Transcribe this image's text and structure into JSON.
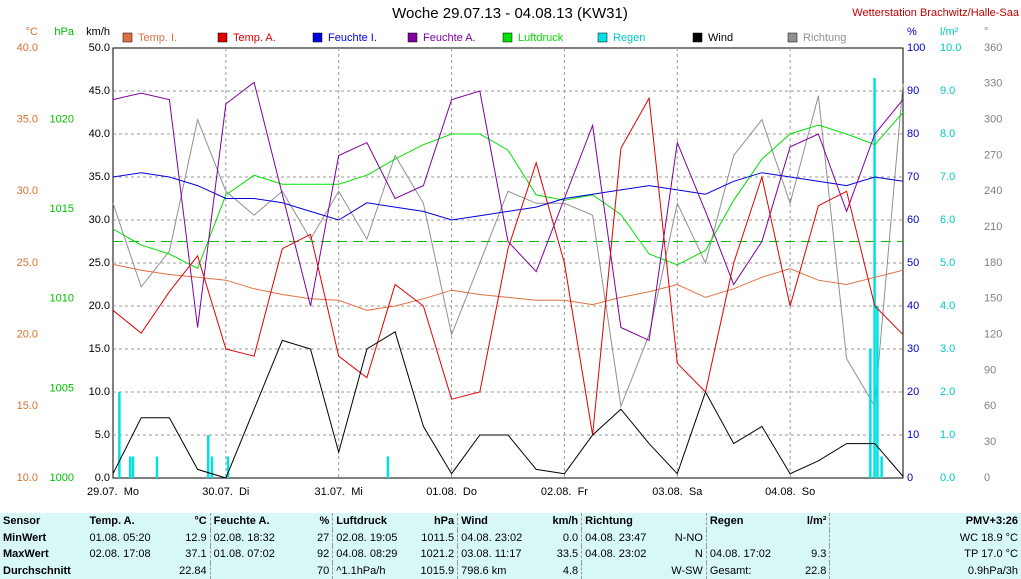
{
  "chart_data": {
    "type": "line",
    "title": "Woche 29.07.13 - 04.08.13 (KW31)",
    "station": "Wetterstation Brachwitz/Halle-Saa",
    "xlim": [
      0,
      168
    ],
    "xticks": [
      {
        "value": 0,
        "label": "29.07.  Mo"
      },
      {
        "value": 24,
        "label": "30.07.  Di"
      },
      {
        "value": 48,
        "label": "31.07.  Mi"
      },
      {
        "value": 72,
        "label": "01.08.  Do"
      },
      {
        "value": 96,
        "label": "02.08.  Fr"
      },
      {
        "value": 120,
        "label": "03.08.  Sa"
      },
      {
        "value": 144,
        "label": "04.08.  So"
      }
    ],
    "grid": true,
    "x": [
      0,
      6,
      12,
      18,
      24,
      30,
      36,
      42,
      48,
      54,
      60,
      66,
      72,
      78,
      84,
      90,
      96,
      102,
      108,
      114,
      120,
      126,
      132,
      138,
      144,
      150,
      156,
      162,
      168
    ],
    "axes": {
      "temp": {
        "unit": "°C",
        "color": "#e07030",
        "lim": [
          10,
          40
        ],
        "ticks": [
          {
            "value": 10,
            "label": "10.0"
          },
          {
            "value": 15,
            "label": "15.0"
          },
          {
            "value": 20,
            "label": "20.0"
          },
          {
            "value": 25,
            "label": "25.0"
          },
          {
            "value": 30,
            "label": "30.0"
          },
          {
            "value": 35,
            "label": "35.0"
          },
          {
            "value": 40,
            "label": "40.0"
          }
        ]
      },
      "pres": {
        "unit": "hPa",
        "color": "#00c000",
        "lim": [
          1000,
          1024
        ],
        "ticks": [
          1000,
          1005,
          1010,
          1015,
          1020
        ]
      },
      "wind": {
        "unit": "km/h",
        "color": "#000000",
        "lim": [
          0,
          50
        ],
        "ticks": [
          {
            "value": 0,
            "label": "0.0"
          },
          {
            "value": 5,
            "label": "5.0"
          },
          {
            "value": 10,
            "label": "10.0"
          },
          {
            "value": 15,
            "label": "15.0"
          },
          {
            "value": 20,
            "label": "20.0"
          },
          {
            "value": 25,
            "label": "25.0"
          },
          {
            "value": 30,
            "label": "30.0"
          },
          {
            "value": 35,
            "label": "35.0"
          },
          {
            "value": 40,
            "label": "40.0"
          },
          {
            "value": 45,
            "label": "45.0"
          },
          {
            "value": 50,
            "label": "50.0"
          }
        ]
      },
      "hum": {
        "unit": "%",
        "color": "#0000c0",
        "lim": [
          0,
          100
        ],
        "ticks": [
          0,
          10,
          20,
          30,
          40,
          50,
          60,
          70,
          80,
          90,
          100
        ]
      },
      "rain": {
        "unit": "l/m²",
        "color": "#00c8c8",
        "lim": [
          0,
          10
        ],
        "ticks": [
          {
            "value": 0,
            "label": "0.0"
          },
          {
            "value": 1,
            "label": "1.0"
          },
          {
            "value": 2,
            "label": "2.0"
          },
          {
            "value": 3,
            "label": "3.0"
          },
          {
            "value": 4,
            "label": "4.0"
          },
          {
            "value": 5,
            "label": "5.0"
          },
          {
            "value": 6,
            "label": "6.0"
          },
          {
            "value": 7,
            "label": "7.0"
          },
          {
            "value": 8,
            "label": "8.0"
          },
          {
            "value": 9,
            "label": "9.0"
          },
          {
            "value": 10,
            "label": "10.0"
          }
        ]
      },
      "dir": {
        "unit": "°",
        "color": "#808080",
        "lim": [
          0,
          360
        ],
        "ticks": [
          0,
          30,
          60,
          90,
          120,
          150,
          180,
          210,
          240,
          270,
          300,
          330,
          360
        ]
      }
    },
    "reference_line": {
      "axis": "pres",
      "value": 1013.2,
      "color": "#00c000"
    },
    "series": [
      {
        "name": "Temp. I.",
        "color": "#e07040",
        "axis": "temp",
        "values": [
          24.9,
          24.5,
          24.2,
          24.0,
          23.8,
          23.2,
          22.8,
          22.5,
          22.4,
          21.7,
          22.0,
          22.5,
          23.1,
          22.8,
          22.6,
          22.4,
          22.4,
          22.1,
          22.6,
          23.0,
          23.5,
          22.6,
          23.2,
          24.0,
          24.6,
          23.8,
          23.5,
          24.0,
          24.5
        ]
      },
      {
        "name": "Temp. A.",
        "color": "#e00000",
        "axis": "temp",
        "values": [
          21.7,
          20.1,
          23.0,
          25.5,
          19.0,
          18.5,
          26.0,
          27.0,
          18.5,
          17.0,
          23.5,
          22.0,
          15.5,
          16.0,
          26.0,
          32.0,
          25.0,
          13.0,
          33.0,
          36.5,
          18.0,
          16.0,
          25.0,
          31.0,
          22.0,
          29.0,
          30.0,
          22.0,
          20.0
        ]
      },
      {
        "name": "Feuchte I.",
        "color": "#0000e0",
        "axis": "hum",
        "values": [
          70,
          71,
          70,
          68,
          65,
          65,
          64,
          62,
          60,
          64,
          63,
          62,
          60,
          61,
          62,
          63,
          65,
          66,
          67,
          68,
          67,
          66,
          69,
          71,
          70,
          69,
          68,
          70,
          69
        ]
      },
      {
        "name": "Feuchte A.",
        "color": "#8000a0",
        "axis": "hum",
        "values": [
          88,
          89.5,
          88,
          35,
          87,
          92,
          66,
          40,
          75,
          78,
          65,
          68,
          88,
          90,
          55,
          48,
          65,
          82,
          35,
          32,
          78,
          62,
          45,
          55,
          77,
          80,
          62,
          80,
          88
        ]
      },
      {
        "name": "Luftdruck",
        "color": "#00e000",
        "axis": "pres",
        "values": [
          1013.9,
          1013.0,
          1012.5,
          1011.7,
          1015.8,
          1016.9,
          1016.4,
          1016.4,
          1016.4,
          1016.9,
          1017.8,
          1018.6,
          1019.2,
          1019.2,
          1018.3,
          1015.8,
          1015.5,
          1015.8,
          1014.7,
          1012.5,
          1011.9,
          1012.7,
          1015.5,
          1017.8,
          1019.2,
          1019.7,
          1019.2,
          1018.6,
          1020.4
        ]
      },
      {
        "name": "Regen",
        "color": "#00e0e0",
        "axis": "rain",
        "type": "bar",
        "x": [
          1.3,
          3.6,
          4.2,
          9.3,
          20.2,
          21.0,
          24.4,
          58.4,
          161.0,
          161.9,
          162.5,
          163.4
        ],
        "values": [
          2.0,
          0.5,
          0.5,
          0.5,
          1.0,
          0.5,
          0.5,
          0.5,
          3.0,
          9.3,
          4.0,
          0.5
        ]
      },
      {
        "name": "Wind",
        "color": "#000000",
        "axis": "wind",
        "values": [
          0.5,
          7,
          7,
          1,
          0,
          8,
          16,
          15,
          3,
          15,
          17,
          6,
          0.5,
          5,
          5,
          1,
          0.5,
          5,
          8,
          4,
          0.5,
          10,
          4,
          6,
          0.5,
          2,
          4,
          4,
          0.2
        ]
      },
      {
        "name": "Richtung",
        "color": "#909090",
        "axis": "dir",
        "values": [
          230,
          160,
          190,
          300,
          240,
          220,
          240,
          200,
          240,
          200,
          270,
          230,
          120,
          180,
          240,
          230,
          230,
          220,
          60,
          120,
          230,
          180,
          270,
          300,
          230,
          320,
          100,
          60,
          330
        ]
      }
    ]
  },
  "stats": {
    "rows": [
      [
        "Sensor",
        "Temp. A.",
        "°C",
        "Feuchte A.",
        "%",
        "Luftdruck",
        "hPa",
        "Wind",
        "km/h",
        "Richtung",
        null,
        "Regen",
        "l/m²",
        "PMV+3:26"
      ],
      [
        "MinWert",
        "01.08. 05:20",
        "12.9",
        "02.08. 18:32",
        "27",
        "02.08. 19:05",
        "1011.5",
        "04.08. 23:02",
        "0.0",
        "04.08. 23:47",
        "N-NO",
        null,
        null,
        "WC 18.9 °C"
      ],
      [
        "MaxWert",
        "02.08. 17:08",
        "37.1",
        "01.08. 07:02",
        "92",
        "04.08. 08:29",
        "1021.2",
        "03.08. 11:17",
        "33.5",
        "04.08. 23:02",
        "N",
        "04.08. 17:02",
        "9.3",
        "TP 17.0 °C"
      ],
      [
        "Durchschnitt",
        null,
        "22.84",
        null,
        "70",
        "^1.1hPa/h",
        "1015.9",
        "798.6 km",
        "4.8",
        null,
        "W-SW",
        "Gesamt:",
        "22.8",
        "0.9hPa/3h"
      ]
    ]
  }
}
